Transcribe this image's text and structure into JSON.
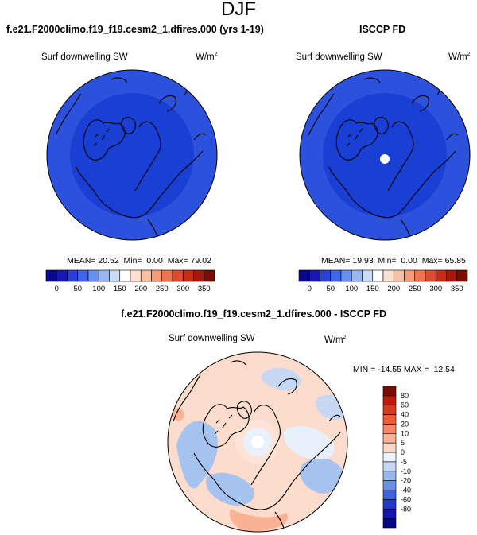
{
  "figure_title": "DJF",
  "left_panel": {
    "title": "f.e21.F2000climo.f19_f19.cesm2_1.dfires.000 (yrs 1-19)",
    "variable": "Surf downwelling SW",
    "units_base": "W/m",
    "units_exp": "2",
    "mean_label": "MEAN=",
    "mean": "20.52",
    "min_label": "Min=",
    "min": "0.00",
    "max_label": "Max=",
    "max": "79.02"
  },
  "right_panel": {
    "title": "ISCCP FD",
    "variable": "Surf downwelling SW",
    "units_base": "W/m",
    "units_exp": "2",
    "mean_label": "MEAN=",
    "mean": "19.93",
    "min_label": "Min=",
    "min": "0.00",
    "max_label": "Max=",
    "max": "65.85"
  },
  "diff_panel": {
    "title": "f.e21.F2000climo.f19_f19.cesm2_1.dfires.000 - ISCCP FD",
    "variable": "Surf downwelling SW",
    "units_base": "W/m",
    "units_exp": "2",
    "min_label": "MIN =",
    "min": "-14.55",
    "max_label": "MAX =",
    "max": "12.54"
  },
  "colorbar_top": {
    "ticks": [
      "0",
      "50",
      "100",
      "150",
      "200",
      "250",
      "300",
      "350"
    ],
    "colors": [
      "#08088c",
      "#1717b5",
      "#2a40d8",
      "#3f65e8",
      "#6890ee",
      "#98b7f2",
      "#c8dcf8",
      "#ffffff",
      "#fde0d0",
      "#f9c0a4",
      "#f59c78",
      "#ef7550",
      "#e24a2c",
      "#c92c14",
      "#a81808",
      "#7a0c02"
    ]
  },
  "colorbar_diff": {
    "ticks": [
      "80",
      "60",
      "40",
      "20",
      "10",
      "5",
      "0",
      "-5",
      "-10",
      "-20",
      "-40",
      "-60",
      "-80"
    ],
    "colors": [
      "#7a0c02",
      "#b81d08",
      "#d63a1c",
      "#ec5c34",
      "#f58a62",
      "#f9b394",
      "#fdd8c4",
      "#ecf3fb",
      "#c6d8f4",
      "#98b7ee",
      "#6890e6",
      "#3f63dc",
      "#2239c8",
      "#1317a8",
      "#070785"
    ]
  },
  "map_colors": {
    "dark_blue": "#1a3fd4",
    "mid_blue": "#2c52dd",
    "diff_bg": "#fcdccc",
    "diff_light": "#e8f0fb",
    "diff_blue": "#a6c2ef"
  }
}
